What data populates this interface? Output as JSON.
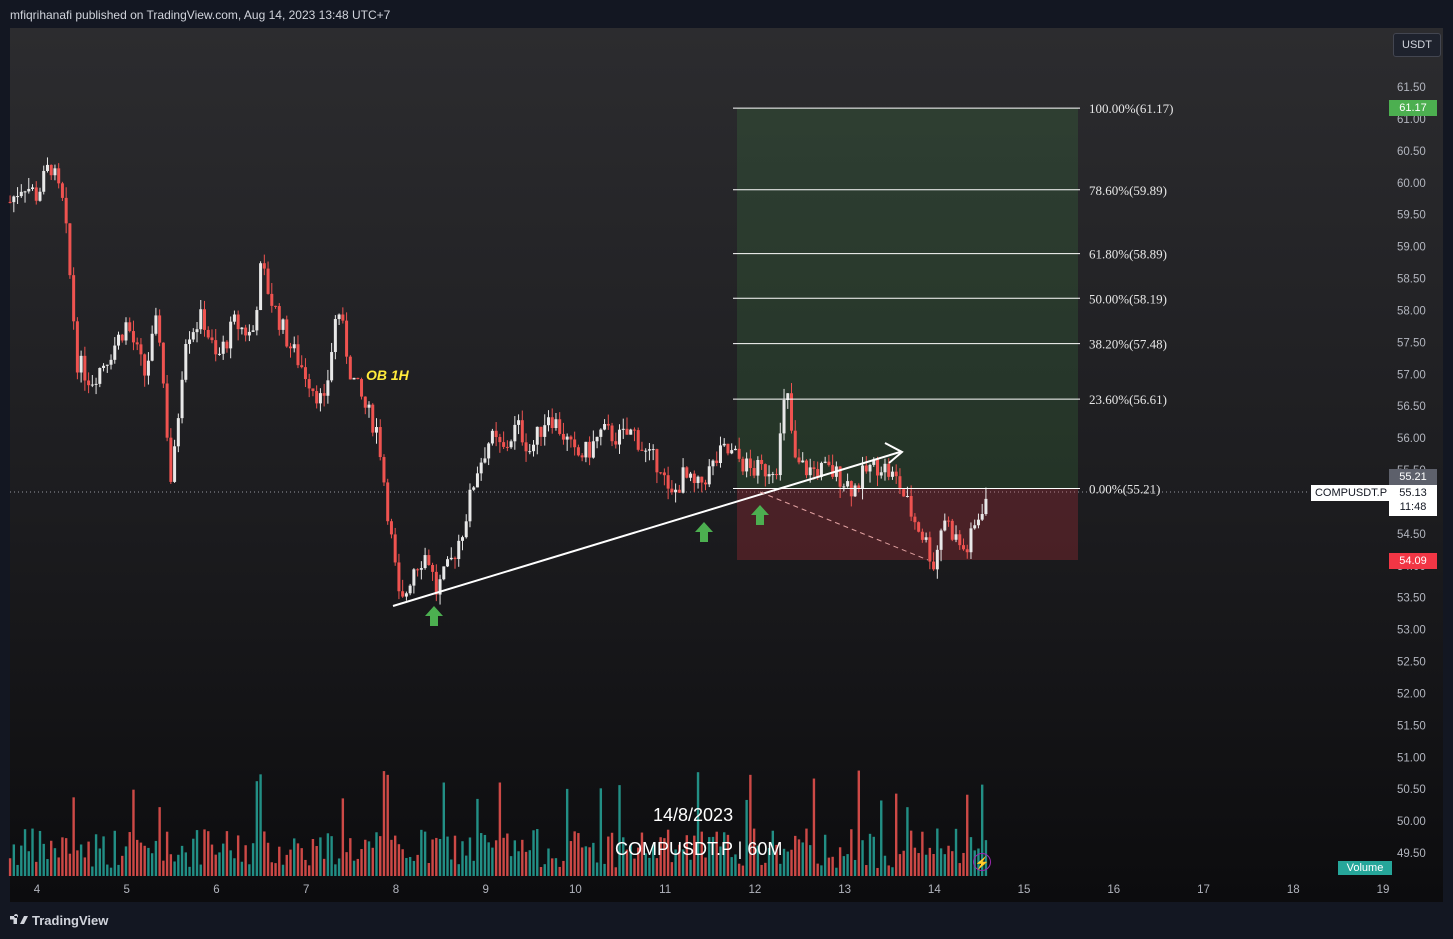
{
  "header": {
    "published": "mfiqrihanafi published on TradingView.com, Aug 14, 2023 13:48 UTC+7"
  },
  "footer": {
    "logo": "TradingView"
  },
  "currency_button": "USDT",
  "symbol_tag": "COMPUSDT.P",
  "price_badges": {
    "top_green": "61.17",
    "current_grey": "55.21",
    "last_price": "55.13",
    "countdown": "11:48",
    "bottom_red": "54.09"
  },
  "annotation": {
    "ob": "OB 1H"
  },
  "overlay": {
    "date": "14/8/2023",
    "title": "COMPUSDT.P | 60M"
  },
  "volume_label": "Volume",
  "colors": {
    "up": "#e8e8e8",
    "down": "#ef5350",
    "green": "#4caf50",
    "red": "#f23645",
    "vol_up": "#26a69a",
    "vol_down": "#ef5350"
  },
  "chart_data": {
    "type": "candlestick",
    "timeframe": "60M",
    "symbol": "COMPUSDT.P",
    "y_ticks": [
      "61.50",
      "61.00",
      "60.50",
      "60.00",
      "59.50",
      "59.00",
      "58.50",
      "58.00",
      "57.50",
      "57.00",
      "56.50",
      "56.00",
      "55.50",
      "55.00",
      "54.50",
      "54.00",
      "53.50",
      "53.00",
      "52.50",
      "52.00",
      "51.50",
      "51.00",
      "50.50",
      "50.00",
      "49.50"
    ],
    "x_ticks": [
      "4",
      "5",
      "6",
      "7",
      "8",
      "9",
      "10",
      "11",
      "12",
      "13",
      "14",
      "15",
      "16",
      "17",
      "18",
      "19"
    ],
    "fib_levels": [
      {
        "label": "100.00%(61.17)",
        "price": 61.17
      },
      {
        "label": "78.60%(59.89)",
        "price": 59.89
      },
      {
        "label": "61.80%(58.89)",
        "price": 58.89
      },
      {
        "label": "50.00%(58.19)",
        "price": 58.19
      },
      {
        "label": "38.20%(57.48)",
        "price": 57.48
      },
      {
        "label": "23.60%(56.61)",
        "price": 56.61
      },
      {
        "label": "0.00%(55.21)",
        "price": 55.21
      }
    ],
    "position": {
      "entry": 55.21,
      "target": 61.17,
      "stop": 54.09
    },
    "price_path": [
      [
        3.7,
        59.7
      ],
      [
        3.85,
        60.0
      ],
      [
        4.0,
        59.8
      ],
      [
        4.15,
        60.3
      ],
      [
        4.3,
        59.6
      ],
      [
        4.45,
        57.2
      ],
      [
        4.6,
        56.9
      ],
      [
        4.8,
        57.3
      ],
      [
        5.0,
        57.8
      ],
      [
        5.2,
        57.0
      ],
      [
        5.35,
        57.9
      ],
      [
        5.5,
        55.2
      ],
      [
        5.65,
        57.6
      ],
      [
        5.85,
        57.9
      ],
      [
        6.0,
        57.2
      ],
      [
        6.2,
        57.8
      ],
      [
        6.4,
        57.6
      ],
      [
        6.5,
        58.7
      ],
      [
        6.6,
        58.2
      ],
      [
        6.8,
        57.5
      ],
      [
        7.0,
        57.0
      ],
      [
        7.2,
        56.5
      ],
      [
        7.35,
        58.1
      ],
      [
        7.5,
        57.0
      ],
      [
        7.65,
        56.5
      ],
      [
        7.8,
        56.1
      ],
      [
        7.95,
        54.4
      ],
      [
        8.05,
        53.3
      ],
      [
        8.2,
        54.0
      ],
      [
        8.35,
        54.2
      ],
      [
        8.45,
        53.6
      ],
      [
        8.6,
        54.0
      ],
      [
        8.75,
        54.6
      ],
      [
        8.9,
        55.5
      ],
      [
        9.05,
        56.0
      ],
      [
        9.2,
        55.8
      ],
      [
        9.35,
        56.2
      ],
      [
        9.5,
        55.8
      ],
      [
        9.7,
        56.4
      ],
      [
        9.85,
        56.1
      ],
      [
        10.0,
        55.7
      ],
      [
        10.15,
        55.8
      ],
      [
        10.3,
        56.1
      ],
      [
        10.5,
        56.0
      ],
      [
        10.65,
        56.1
      ],
      [
        10.8,
        55.7
      ],
      [
        10.95,
        55.6
      ],
      [
        11.05,
        55.0
      ],
      [
        11.2,
        55.4
      ],
      [
        11.35,
        55.2
      ],
      [
        11.5,
        55.5
      ],
      [
        11.65,
        55.8
      ],
      [
        11.8,
        55.7
      ],
      [
        11.95,
        55.5
      ],
      [
        12.1,
        55.5
      ],
      [
        12.25,
        55.6
      ],
      [
        12.35,
        56.8
      ],
      [
        12.45,
        55.6
      ],
      [
        12.6,
        55.5
      ],
      [
        12.8,
        55.5
      ],
      [
        12.95,
        55.4
      ],
      [
        13.1,
        55.2
      ],
      [
        13.25,
        55.5
      ],
      [
        13.4,
        55.6
      ],
      [
        13.6,
        55.3
      ],
      [
        13.75,
        54.8
      ],
      [
        13.9,
        54.4
      ],
      [
        14.0,
        54.0
      ],
      [
        14.1,
        54.8
      ],
      [
        14.25,
        54.4
      ],
      [
        14.35,
        54.2
      ],
      [
        14.45,
        54.6
      ],
      [
        14.55,
        55.0
      ],
      [
        14.6,
        55.13
      ]
    ],
    "annotations": [
      "OB 1H"
    ],
    "legend": [
      "Volume"
    ],
    "grid": false
  }
}
